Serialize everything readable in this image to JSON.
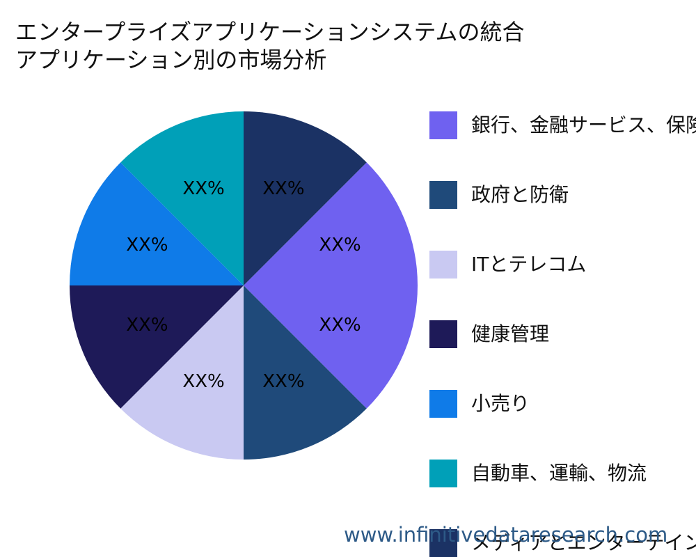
{
  "chart_data": {
    "type": "pie",
    "title": [
      "エンタープライズアプリケーションシステムの統合",
      "アプリケーション別の市場分析"
    ],
    "series": [
      {
        "name": "銀行、金融サービス、保険",
        "color": "#6f61f0",
        "values": [
          25
        ],
        "value_labels": [
          "XX%"
        ]
      },
      {
        "name": "政府と防衛",
        "color": "#1f4a7a",
        "values": [
          12.5
        ],
        "value_labels": [
          "XX%"
        ]
      },
      {
        "name": "ITとテレコム",
        "color": "#c9c9f2",
        "values": [
          12.5
        ],
        "value_labels": [
          "XX%"
        ]
      },
      {
        "name": "健康管理",
        "color": "#1e1a58",
        "values": [
          12.5
        ],
        "value_labels": [
          "XX%"
        ]
      },
      {
        "name": "小売り",
        "color": "#0f7be8",
        "values": [
          12.5
        ],
        "value_labels": [
          "XX%"
        ]
      },
      {
        "name": "自動車、運輸、物流",
        "color": "#00a0b8",
        "values": [
          12.5
        ],
        "value_labels": [
          "XX%"
        ]
      },
      {
        "name": "メディアとエンターテインメント",
        "color": "#1b3264",
        "values": [
          12.5
        ],
        "value_labels": [
          "XX%"
        ]
      }
    ],
    "legend": "right",
    "watermark": "www.infinitivedataresearch.com"
  }
}
